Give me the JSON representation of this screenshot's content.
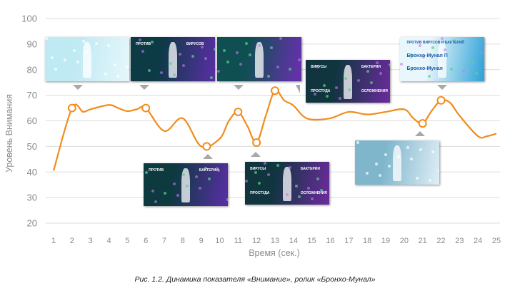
{
  "chart_data": {
    "type": "line",
    "title": "",
    "xlabel": "Время (сек.)",
    "ylabel": "Уровень Внимания",
    "x": [
      1,
      2,
      3,
      4,
      5,
      6,
      7,
      8,
      9,
      10,
      11,
      12,
      13,
      14,
      15,
      16,
      17,
      18,
      19,
      20,
      21,
      22,
      23,
      24,
      25
    ],
    "xlim": [
      1,
      25
    ],
    "ylim": [
      20,
      100
    ],
    "yticks": [
      20,
      30,
      40,
      50,
      60,
      70,
      80,
      90,
      100
    ],
    "grid": true,
    "series": [
      {
        "color": "#f28c1b",
        "points": [
          [
            1,
            40.5
          ],
          [
            2,
            65
          ],
          [
            2.6,
            63.5
          ],
          [
            3,
            64.5
          ],
          [
            4,
            66.2
          ],
          [
            4.5,
            65
          ],
          [
            5,
            63.8
          ],
          [
            5.5,
            64.5
          ],
          [
            6,
            65
          ],
          [
            7,
            56
          ],
          [
            8,
            61
          ],
          [
            9,
            50
          ],
          [
            10,
            53
          ],
          [
            10.5,
            60
          ],
          [
            11,
            63.5
          ],
          [
            11.5,
            58
          ],
          [
            12,
            51.5
          ],
          [
            12.5,
            62
          ],
          [
            13,
            71.8
          ],
          [
            13.5,
            68
          ],
          [
            14,
            66
          ],
          [
            14.5,
            62
          ],
          [
            15,
            60.5
          ],
          [
            16,
            61
          ],
          [
            17,
            63.5
          ],
          [
            18,
            62.5
          ],
          [
            19,
            63.5
          ],
          [
            20,
            64.5
          ],
          [
            20.5,
            61
          ],
          [
            21,
            59
          ],
          [
            21.5,
            64
          ],
          [
            22,
            68
          ],
          [
            22.5,
            67
          ],
          [
            23,
            62
          ],
          [
            24,
            54
          ],
          [
            24.5,
            54
          ],
          [
            25,
            55
          ]
        ]
      }
    ],
    "highlighted_points": [
      [
        2,
        65
      ],
      [
        6,
        65
      ],
      [
        9.3,
        50
      ],
      [
        11,
        63.5
      ],
      [
        12,
        51.5
      ],
      [
        13,
        71.8
      ],
      [
        21,
        59
      ],
      [
        22,
        68
      ]
    ]
  },
  "thumbnails": [
    {
      "id": "t1",
      "palette": [
        "#bfe9f3",
        "#e6f7fb"
      ],
      "labels": []
    },
    {
      "id": "t2",
      "palette": [
        "#0c3a45",
        "#5a2ea6"
      ],
      "labels": [
        "ПРОТИВ",
        "ВИРУСОВ"
      ]
    },
    {
      "id": "t3",
      "palette": [
        "#0f4f52",
        "#6a2fb0"
      ],
      "labels": []
    },
    {
      "id": "t4",
      "palette": [
        "#10353f",
        "#6c2b9e"
      ],
      "labels": [
        "ВИРУСЫ",
        "БАКТЕРИИ",
        "ПРОСТУДА",
        "ОСЛОЖНЕНИЯ"
      ]
    },
    {
      "id": "t5",
      "palette": [
        "#e9f6fb",
        "#2aa1d6"
      ],
      "labels": [
        "ПРОТИВ ВИРУСОВ И БАКТЕРИЙ",
        "Бронхо-Мунал П",
        "Бронхо-Мунал"
      ]
    },
    {
      "id": "t6",
      "palette": [
        "#0c3a3f",
        "#5a2ea6"
      ],
      "labels": [
        "ПРОТИВ",
        "БАКТЕРИЙ"
      ]
    },
    {
      "id": "t7",
      "palette": [
        "#10353f",
        "#6c2b9e"
      ],
      "labels": [
        "ВИРУСЫ",
        "БАКТЕРИИ",
        "ПРОСТУДА",
        "ОСЛОЖНЕНИЯ"
      ]
    },
    {
      "id": "t8",
      "palette": [
        "#7fb6cc",
        "#dfeef5"
      ],
      "labels": []
    }
  ],
  "caption": "Рис. 1.2. Динамика показателя «Внимание», ролик «Бронхо-Мунал»"
}
